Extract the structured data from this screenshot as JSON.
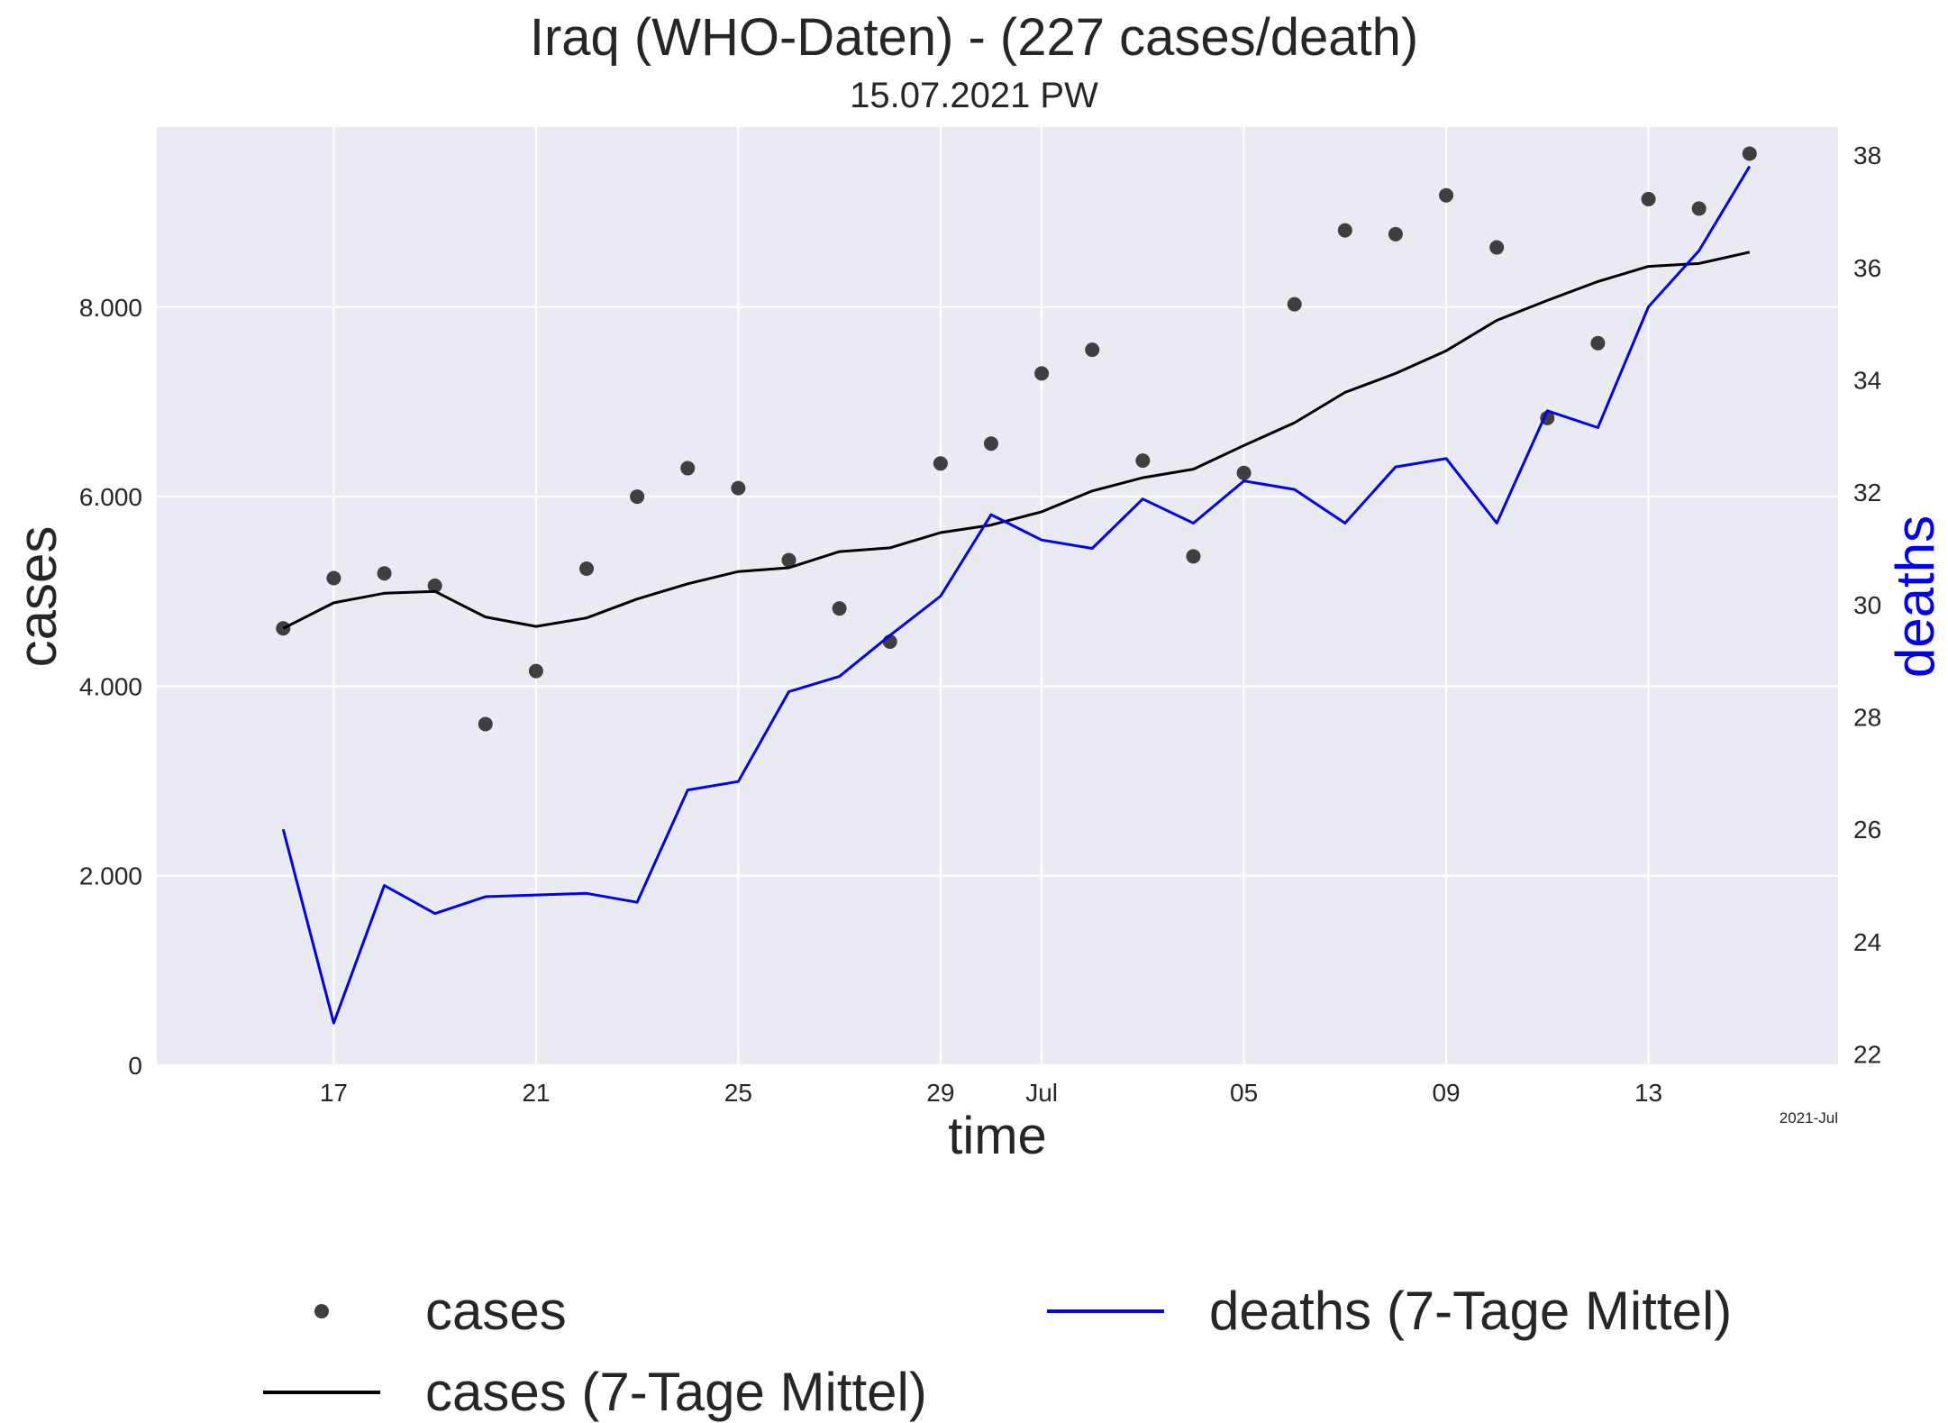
{
  "chart_data": {
    "type": "line",
    "title": "Iraq (WHO-Daten) - (227 cases/death)",
    "subtitle": "15.07.2021 PW",
    "xlabel": "time",
    "ylabel_left": "cases",
    "ylabel_right": "deaths",
    "x_corner_label": "2021-Jul",
    "x_ticks": [
      {
        "date": "2021-06-17",
        "label": "17"
      },
      {
        "date": "2021-06-21",
        "label": "21"
      },
      {
        "date": "2021-06-25",
        "label": "25"
      },
      {
        "date": "2021-06-29",
        "label": "29"
      },
      {
        "date": "2021-07-01",
        "label": "Jul"
      },
      {
        "date": "2021-07-05",
        "label": "05"
      },
      {
        "date": "2021-07-09",
        "label": "09"
      },
      {
        "date": "2021-07-13",
        "label": "13"
      }
    ],
    "x_range": [
      "2021-06-13T12:00",
      "2021-07-16T18:00"
    ],
    "y_left": {
      "lim": [
        0,
        9900
      ],
      "ticks": [
        0,
        2000,
        4000,
        6000,
        8000
      ],
      "tick_labels": [
        "0",
        "2.000",
        "4.000",
        "6.000",
        "8.000"
      ]
    },
    "y_right": {
      "lim": [
        21.8,
        38.5
      ],
      "ticks": [
        22,
        24,
        26,
        28,
        30,
        32,
        34,
        36,
        38
      ],
      "tick_labels": [
        "22",
        "24",
        "26",
        "28",
        "30",
        "32",
        "34",
        "36",
        "38"
      ]
    },
    "grid": true,
    "legend_position": "bottom",
    "dates": [
      "2021-06-16",
      "2021-06-17",
      "2021-06-18",
      "2021-06-19",
      "2021-06-20",
      "2021-06-21",
      "2021-06-22",
      "2021-06-23",
      "2021-06-24",
      "2021-06-25",
      "2021-06-26",
      "2021-06-27",
      "2021-06-28",
      "2021-06-29",
      "2021-06-30",
      "2021-07-01",
      "2021-07-02",
      "2021-07-03",
      "2021-07-04",
      "2021-07-05",
      "2021-07-06",
      "2021-07-07",
      "2021-07-08",
      "2021-07-09",
      "2021-07-10",
      "2021-07-11",
      "2021-07-12",
      "2021-07-13",
      "2021-07-14",
      "2021-07-15"
    ],
    "series": [
      {
        "name": "cases",
        "axis": "left",
        "style": "points",
        "color": "#3f3f3f",
        "values": [
          4610,
          5140,
          5190,
          5060,
          3600,
          4160,
          5240,
          6000,
          6300,
          6090,
          5330,
          4820,
          4470,
          6350,
          6560,
          7300,
          7550,
          6380,
          5370,
          6250,
          8030,
          8810,
          8770,
          9180,
          8630,
          6830,
          7620,
          9140,
          9040,
          9620
        ]
      },
      {
        "name": "cases (7-Tage Mittel)",
        "axis": "left",
        "style": "line",
        "color": "#000000",
        "values": [
          4610,
          4880,
          4980,
          5000,
          4730,
          4630,
          4720,
          4920,
          5080,
          5210,
          5250,
          5420,
          5460,
          5620,
          5700,
          5840,
          6060,
          6200,
          6290,
          6540,
          6780,
          7100,
          7300,
          7540,
          7860,
          8070,
          8270,
          8430,
          8460,
          8580
        ]
      },
      {
        "name": "deaths (7-Tage Mittel)",
        "axis": "right",
        "style": "line",
        "color": "#0000ee",
        "values": [
          26.0,
          22.55,
          25.0,
          24.5,
          24.8,
          24.83,
          24.86,
          24.7,
          26.7,
          26.85,
          28.45,
          28.72,
          29.45,
          30.15,
          31.6,
          31.15,
          31.0,
          31.88,
          31.45,
          32.2,
          32.05,
          31.45,
          32.45,
          32.6,
          31.45,
          33.45,
          33.15,
          35.3,
          36.3,
          37.8
        ]
      }
    ]
  }
}
